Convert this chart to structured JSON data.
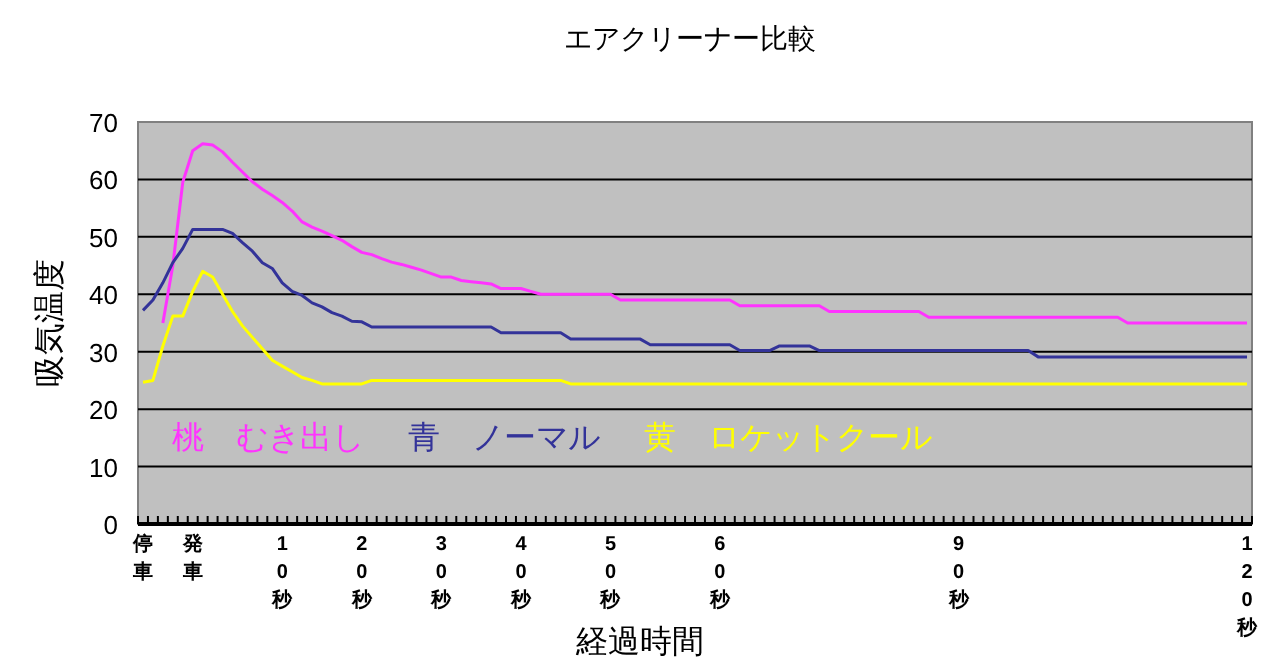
{
  "chart_data": {
    "type": "line",
    "title": "エアクリーナー比較",
    "xlabel": "経過時間",
    "ylabel": "吸気温度",
    "categories": [
      "停車",
      null,
      null,
      null,
      null,
      "発車",
      null,
      null,
      null,
      null,
      null,
      null,
      null,
      null,
      "10秒",
      null,
      null,
      null,
      null,
      null,
      null,
      null,
      "20秒",
      null,
      null,
      null,
      null,
      null,
      null,
      null,
      "30秒",
      null,
      null,
      null,
      null,
      null,
      null,
      null,
      "40秒",
      null,
      null,
      null,
      null,
      null,
      null,
      null,
      null,
      "50秒",
      null,
      null,
      null,
      null,
      null,
      null,
      null,
      null,
      null,
      null,
      "60秒",
      null,
      null,
      null,
      null,
      null,
      null,
      null,
      null,
      null,
      null,
      null,
      null,
      null,
      null,
      null,
      null,
      null,
      null,
      null,
      null,
      null,
      null,
      null,
      "90秒",
      null,
      null,
      null,
      null,
      null,
      null,
      null,
      null,
      null,
      null,
      null,
      null,
      null,
      null,
      null,
      null,
      null,
      null,
      null,
      null,
      null,
      null,
      null,
      null,
      null,
      null,
      null,
      null,
      "120秒"
    ],
    "series": [
      {
        "name": "桃　むき出し",
        "color": "#ff33ff",
        "values": [
          null,
          null,
          35,
          45,
          59.5,
          65,
          66.2,
          66,
          64.8,
          63,
          61.3,
          59.6,
          58.3,
          57.2,
          56,
          54.5,
          52.6,
          51.7,
          51,
          50.2,
          49.4,
          48.3,
          47.3,
          46.9,
          46.2,
          45.6,
          45.2,
          44.7,
          44.2,
          43.6,
          43,
          43,
          42.4,
          42.2,
          42,
          41.8,
          41,
          41,
          41,
          40.5,
          40,
          40,
          40,
          40,
          40,
          40,
          40,
          40,
          39,
          39,
          39,
          39,
          39,
          39,
          39,
          39,
          39,
          39,
          39,
          39,
          38,
          38,
          38,
          38,
          38,
          38,
          38,
          38,
          38,
          37,
          37,
          37,
          37,
          37,
          37,
          37,
          37,
          37,
          37,
          36,
          36,
          36,
          36,
          36,
          36,
          36,
          36,
          36,
          36,
          36,
          36,
          36,
          36,
          36,
          36,
          36,
          36,
          36,
          36,
          35,
          35,
          35,
          35,
          35,
          35,
          35,
          35,
          35,
          35,
          35,
          35,
          35
        ]
      },
      {
        "name": "青　ノーマル",
        "color": "#333399",
        "values": [
          37.2,
          39,
          42,
          45.5,
          48,
          51.3,
          51.3,
          51.3,
          51.3,
          50.6,
          49,
          47.5,
          45.5,
          44.5,
          42,
          40.5,
          39.8,
          38.5,
          37.8,
          36.8,
          36.2,
          35.3,
          35.2,
          34.3,
          34.3,
          34.3,
          34.3,
          34.3,
          34.3,
          34.3,
          34.3,
          34.3,
          34.3,
          34.3,
          34.3,
          34.3,
          33.3,
          33.3,
          33.3,
          33.3,
          33.3,
          33.3,
          33.3,
          32.2,
          32.2,
          32.2,
          32.2,
          32.2,
          32.2,
          32.2,
          32.2,
          31.2,
          31.2,
          31.2,
          31.2,
          31.2,
          31.2,
          31.2,
          31.2,
          31.2,
          30.2,
          30.2,
          30.2,
          30.2,
          31,
          31,
          31,
          31,
          30.2,
          30.2,
          30.2,
          30.2,
          30.2,
          30.2,
          30.2,
          30.2,
          30.2,
          30.2,
          30.2,
          30.2,
          30.2,
          30.2,
          30.2,
          30.2,
          30.2,
          30.2,
          30.2,
          30.2,
          30.2,
          30.2,
          29.1,
          29.1,
          29.1,
          29.1,
          29.1,
          29.1,
          29.1,
          29.1,
          29.1,
          29.1,
          29.1,
          29.1,
          29.1,
          29.1,
          29.1,
          29.1,
          29.1,
          29.1,
          29.1,
          29.1,
          29.1,
          29.1
        ]
      },
      {
        "name": "黄　ロケットクール",
        "color": "#ffff00",
        "values": [
          24.7,
          25,
          31,
          36.2,
          36.2,
          40.5,
          44,
          43,
          40,
          37,
          34.5,
          32.5,
          30.5,
          28.5,
          27.5,
          26.5,
          25.5,
          25,
          24.4,
          24.4,
          24.4,
          24.4,
          24.4,
          25,
          25,
          25,
          25,
          25,
          25,
          25,
          25,
          25,
          25,
          25,
          25,
          25,
          25,
          25,
          25,
          25,
          25,
          25,
          25,
          24.4,
          24.4,
          24.4,
          24.4,
          24.4,
          24.4,
          24.4,
          24.4,
          24.4,
          24.4,
          24.4,
          24.4,
          24.4,
          24.4,
          24.4,
          24.4,
          24.4,
          24.4,
          24.4,
          24.4,
          24.4,
          24.4,
          24.4,
          24.4,
          24.4,
          24.4,
          24.4,
          24.4,
          24.4,
          24.4,
          24.4,
          24.4,
          24.4,
          24.4,
          24.4,
          24.4,
          24.4,
          24.4,
          24.4,
          24.4,
          24.4,
          24.4,
          24.4,
          24.4,
          24.4,
          24.4,
          24.4,
          24.4,
          24.4,
          24.4,
          24.4,
          24.4,
          24.4,
          24.4,
          24.4,
          24.4,
          24.4,
          24.4,
          24.4,
          24.4,
          24.4,
          24.4,
          24.4,
          24.4,
          24.4,
          24.4,
          24.4,
          24.4,
          24.4
        ]
      }
    ],
    "ylim": [
      0,
      70
    ],
    "yticks": [
      0,
      10,
      20,
      30,
      40,
      50,
      60,
      70
    ],
    "grid": "y"
  }
}
